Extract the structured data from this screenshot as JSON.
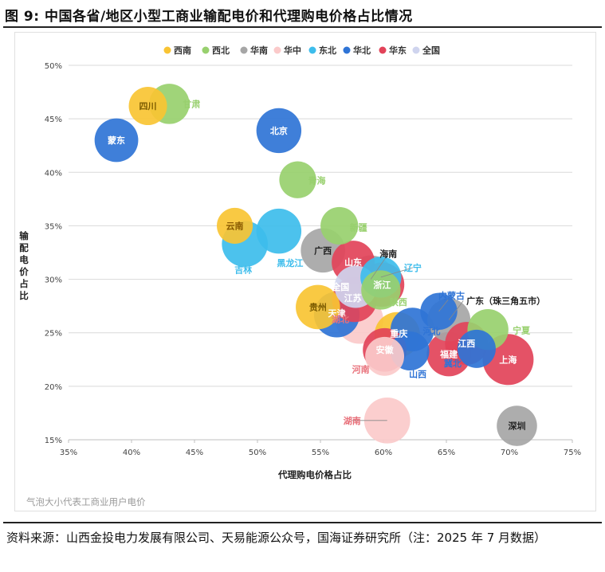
{
  "figure": {
    "title": "图 9:  中国各省/地区小型工商业输配电价和代理购电价格占比情况",
    "note": "气泡大小代表工商业用户电价",
    "source": "资料来源：山西金投电力发展有限公司、天易能源公众号，国海证券研究所（注：2025 年 7 月数据）"
  },
  "chart_data": {
    "type": "scatter",
    "subtype": "bubble",
    "title": "",
    "xlabel": "代理购电价格占比",
    "ylabel": "输配电价占比",
    "xlim": [
      0.35,
      0.75
    ],
    "ylim": [
      0.15,
      0.5
    ],
    "xticks": [
      "35%",
      "40%",
      "45%",
      "50%",
      "55%",
      "60%",
      "65%",
      "70%",
      "75%"
    ],
    "yticks": [
      "15%",
      "20%",
      "25%",
      "30%",
      "35%",
      "40%",
      "45%",
      "50%"
    ],
    "grid": "horizontal",
    "legend_position": "top",
    "regions": [
      {
        "name": "西南",
        "color": "#f9c433"
      },
      {
        "name": "西北",
        "color": "#98d06e"
      },
      {
        "name": "华南",
        "color": "#a6a6a6"
      },
      {
        "name": "华中",
        "color": "#fbcaca"
      },
      {
        "name": "东北",
        "color": "#3dbdec"
      },
      {
        "name": "华北",
        "color": "#2f74d6"
      },
      {
        "name": "华东",
        "color": "#e24359"
      },
      {
        "name": "全国",
        "color": "#cfd4ee"
      }
    ],
    "points": [
      {
        "name": "四川",
        "region": "西南",
        "x": 0.413,
        "y": 0.462,
        "size": 0.62
      },
      {
        "name": "甘肃",
        "region": "西北",
        "x": 0.43,
        "y": 0.464,
        "size": 0.68
      },
      {
        "name": "蒙东",
        "region": "华北",
        "x": 0.388,
        "y": 0.43,
        "size": 0.78
      },
      {
        "name": "北京",
        "region": "华北",
        "x": 0.517,
        "y": 0.439,
        "size": 0.82
      },
      {
        "name": "青海",
        "region": "西北",
        "x": 0.532,
        "y": 0.393,
        "size": 0.58
      },
      {
        "name": "云南",
        "region": "西南",
        "x": 0.482,
        "y": 0.35,
        "size": 0.55
      },
      {
        "name": "新疆",
        "region": "西北",
        "x": 0.565,
        "y": 0.35,
        "size": 0.6
      },
      {
        "name": "吉林",
        "region": "东北",
        "x": 0.49,
        "y": 0.333,
        "size": 0.85
      },
      {
        "name": "黑龙江",
        "region": "东北",
        "x": 0.517,
        "y": 0.345,
        "size": 0.82
      },
      {
        "name": "广西",
        "region": "华南",
        "x": 0.552,
        "y": 0.327,
        "size": 0.8
      },
      {
        "name": "山东",
        "region": "华东",
        "x": 0.576,
        "y": 0.316,
        "size": 0.76
      },
      {
        "name": "海南",
        "region": "华南",
        "x": 0.59,
        "y": 0.3,
        "size": 0.9
      },
      {
        "name": "浙江",
        "region": "华东",
        "x": 0.599,
        "y": 0.295,
        "size": 0.8
      },
      {
        "name": "辽宁",
        "region": "东北",
        "x": 0.598,
        "y": 0.302,
        "size": 0.7
      },
      {
        "name": "陕西",
        "region": "西北",
        "x": 0.598,
        "y": 0.29,
        "size": 0.65
      },
      {
        "name": "全国",
        "region": "全国",
        "x": 0.578,
        "y": 0.293,
        "size": 0.74
      },
      {
        "name": "江苏",
        "region": "华东",
        "x": 0.577,
        "y": 0.281,
        "size": 0.82
      },
      {
        "name": "贵州",
        "region": "西南",
        "x": 0.548,
        "y": 0.274,
        "size": 0.8
      },
      {
        "name": "天津",
        "region": "华北",
        "x": 0.563,
        "y": 0.267,
        "size": 0.84
      },
      {
        "name": "湖北",
        "region": "华中",
        "x": 0.581,
        "y": 0.262,
        "size": 0.9
      },
      {
        "name": "内蒙古",
        "region": "华北",
        "x": 0.644,
        "y": 0.27,
        "size": 0.58
      },
      {
        "name": "广东（珠三角五市）",
        "region": "华南",
        "x": 0.652,
        "y": 0.262,
        "size": 0.76
      },
      {
        "name": "重庆",
        "region": "西南",
        "x": 0.611,
        "y": 0.248,
        "size": 0.84
      },
      {
        "name": "河北",
        "region": "华北",
        "x": 0.623,
        "y": 0.253,
        "size": 0.78
      },
      {
        "name": "宁夏",
        "region": "西北",
        "x": 0.683,
        "y": 0.253,
        "size": 0.7
      },
      {
        "name": "江西",
        "region": "华东",
        "x": 0.666,
        "y": 0.24,
        "size": 0.76
      },
      {
        "name": "安徽",
        "region": "华东",
        "x": 0.601,
        "y": 0.234,
        "size": 0.78
      },
      {
        "name": "山西",
        "region": "华北",
        "x": 0.621,
        "y": 0.233,
        "size": 0.64
      },
      {
        "name": "福建",
        "region": "华东",
        "x": 0.652,
        "y": 0.23,
        "size": 0.8
      },
      {
        "name": "冀北",
        "region": "华北",
        "x": 0.674,
        "y": 0.235,
        "size": 0.62
      },
      {
        "name": "上海",
        "region": "华东",
        "x": 0.699,
        "y": 0.225,
        "size": 1.0
      },
      {
        "name": "河南",
        "region": "华中",
        "x": 0.601,
        "y": 0.228,
        "size": 0.64
      },
      {
        "name": "湖南",
        "region": "华中",
        "x": 0.603,
        "y": 0.168,
        "size": 0.85
      },
      {
        "name": "深圳",
        "region": "华南",
        "x": 0.706,
        "y": 0.163,
        "size": 0.68
      }
    ]
  }
}
